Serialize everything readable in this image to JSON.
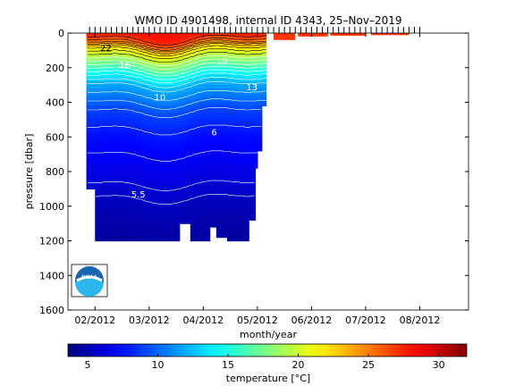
{
  "chart_data": {
    "type": "heatmap",
    "title": "WMO ID 4901498, internal ID 4343, 25–Nov–2019",
    "xlabel": "month/year",
    "ylabel": "pressure [dbar]",
    "x_tick_labels": [
      "02/2012",
      "03/2012",
      "04/2012",
      "05/2012",
      "06/2012",
      "07/2012",
      "08/2012"
    ],
    "x_ticks_month": [
      1,
      2,
      3,
      4,
      5,
      6,
      7
    ],
    "x_range_month": [
      0.5,
      7.9
    ],
    "y_ticks": [
      0,
      200,
      400,
      600,
      800,
      1000,
      1200,
      1400,
      1600
    ],
    "y_range": [
      0,
      1600
    ],
    "y_reversed": true,
    "colorbar": {
      "label": "temperature [°C]",
      "ticks": [
        5,
        10,
        15,
        20,
        25,
        30
      ],
      "range": [
        3.6,
        32
      ],
      "colormap": "jet"
    },
    "temperature_profile": {
      "pressure": [
        0,
        20,
        40,
        60,
        80,
        100,
        150,
        200,
        250,
        300,
        350,
        400,
        450,
        500,
        600,
        700,
        800,
        900,
        1000,
        1100,
        1200
      ],
      "temperature": [
        28,
        27.5,
        26.5,
        25,
        23,
        21.5,
        19,
        16.5,
        14,
        12,
        11,
        10,
        9,
        8.5,
        7.5,
        7,
        6.5,
        5.8,
        5.2,
        4.8,
        4.5
      ]
    },
    "contour_labels": [
      {
        "text": "22",
        "month": 1.2,
        "pressure": 105
      },
      {
        "text": "16",
        "month": 1.55,
        "pressure": 200
      },
      {
        "text": "10",
        "month": 2.2,
        "pressure": 390
      },
      {
        "text": "6",
        "month": 3.2,
        "pressure": 590
      },
      {
        "text": "5.5",
        "month": 1.8,
        "pressure": 950
      },
      {
        "text": "19",
        "month": 3.35,
        "pressure": 180
      },
      {
        "text": "13",
        "month": 3.9,
        "pressure": 330
      }
    ]
  },
  "logo": {
    "text": "NOAA"
  },
  "colors": {
    "background": "#ffffff",
    "axis": "#000000",
    "contour": "#ffffff"
  }
}
